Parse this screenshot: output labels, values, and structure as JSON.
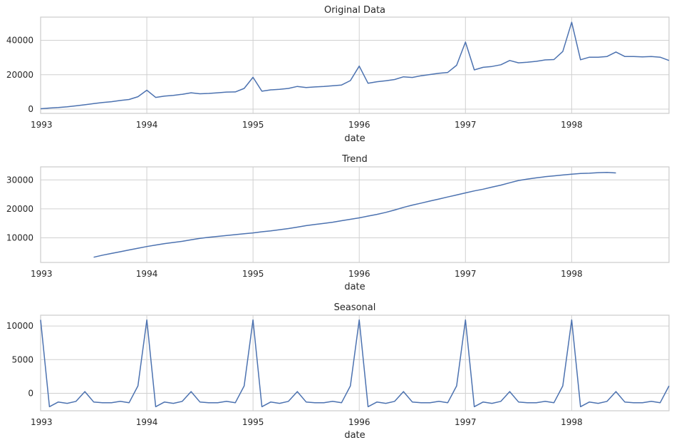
{
  "chart_data": [
    {
      "type": "line",
      "title": "Original Data",
      "xlabel": "date",
      "ylabel": "",
      "x_ticks": [
        "1993",
        "1994",
        "1995",
        "1996",
        "1997",
        "1998"
      ],
      "y_ticks": [
        "0",
        "20000",
        "40000"
      ],
      "x_start": "1993-01",
      "x_end": "1998-12",
      "ylim": [
        -2500,
        53500
      ],
      "grid": true,
      "series": [
        {
          "values": [
            200,
            600,
            900,
            1300,
            1900,
            2500,
            3200,
            3800,
            4300,
            5000,
            5600,
            7200,
            11000,
            6800,
            7600,
            8000,
            8600,
            9500,
            8900,
            9100,
            9500,
            9900,
            10000,
            12000,
            18500,
            10400,
            11200,
            11500,
            12000,
            13200,
            12500,
            12900,
            13200,
            13600,
            14000,
            16600,
            25000,
            15000,
            15900,
            16500,
            17200,
            18800,
            18400,
            19400,
            20100,
            20800,
            21300,
            25500,
            39000,
            22800,
            24300,
            24800,
            25800,
            28300,
            26900,
            27300,
            27800,
            28600,
            28800,
            33500,
            50500,
            28700,
            30200,
            30200,
            30600,
            33200,
            30600,
            30600,
            30400,
            30600,
            30200,
            28300
          ]
        }
      ]
    },
    {
      "type": "line",
      "title": "Trend",
      "xlabel": "date",
      "ylabel": "",
      "x_ticks": [
        "1993",
        "1994",
        "1995",
        "1996",
        "1997",
        "1998"
      ],
      "y_ticks": [
        "10000",
        "20000",
        "30000"
      ],
      "x_start": "1993-07",
      "x_end": "1998-06",
      "ylim": [
        1500,
        34500
      ],
      "grid": true,
      "series": [
        {
          "values": [
            3300,
            4000,
            4600,
            5200,
            5800,
            6400,
            7000,
            7500,
            8000,
            8400,
            8800,
            9300,
            9800,
            10200,
            10500,
            10800,
            11100,
            11400,
            11700,
            12100,
            12400,
            12800,
            13200,
            13700,
            14200,
            14600,
            15000,
            15400,
            15900,
            16400,
            16900,
            17500,
            18100,
            18800,
            19600,
            20500,
            21300,
            22000,
            22700,
            23400,
            24100,
            24800,
            25500,
            26200,
            26800,
            27500,
            28200,
            29000,
            29800,
            30300,
            30700,
            31100,
            31400,
            31700,
            32000,
            32200,
            32300,
            32500,
            32600,
            32400
          ]
        }
      ]
    },
    {
      "type": "line",
      "title": "Seasonal",
      "xlabel": "date",
      "ylabel": "",
      "x_ticks": [
        "1993",
        "1994",
        "1995",
        "1996",
        "1997",
        "1998"
      ],
      "y_ticks": [
        "0",
        "5000",
        "10000"
      ],
      "x_start": "1993-01",
      "x_end": "1998-12",
      "ylim": [
        -2600,
        11600
      ],
      "grid": true,
      "series": [
        {
          "values": [
            10900,
            -2000,
            -1300,
            -1500,
            -1200,
            250,
            -1300,
            -1400,
            -1400,
            -1200,
            -1400,
            1100,
            10900,
            -2000,
            -1300,
            -1500,
            -1200,
            250,
            -1300,
            -1400,
            -1400,
            -1200,
            -1400,
            1100,
            10900,
            -2000,
            -1300,
            -1500,
            -1200,
            250,
            -1300,
            -1400,
            -1400,
            -1200,
            -1400,
            1100,
            10900,
            -2000,
            -1300,
            -1500,
            -1200,
            250,
            -1300,
            -1400,
            -1400,
            -1200,
            -1400,
            1100,
            10900,
            -2000,
            -1300,
            -1500,
            -1200,
            250,
            -1300,
            -1400,
            -1400,
            -1200,
            -1400,
            1100,
            10900,
            -2000,
            -1300,
            -1500,
            -1200,
            250,
            -1300,
            -1400,
            -1400,
            -1200,
            -1400,
            1100
          ]
        }
      ]
    }
  ],
  "colors": {
    "line": "#4c72b0",
    "grid": "#d0d0d0",
    "frame": "#cccccc",
    "text": "#262626"
  }
}
